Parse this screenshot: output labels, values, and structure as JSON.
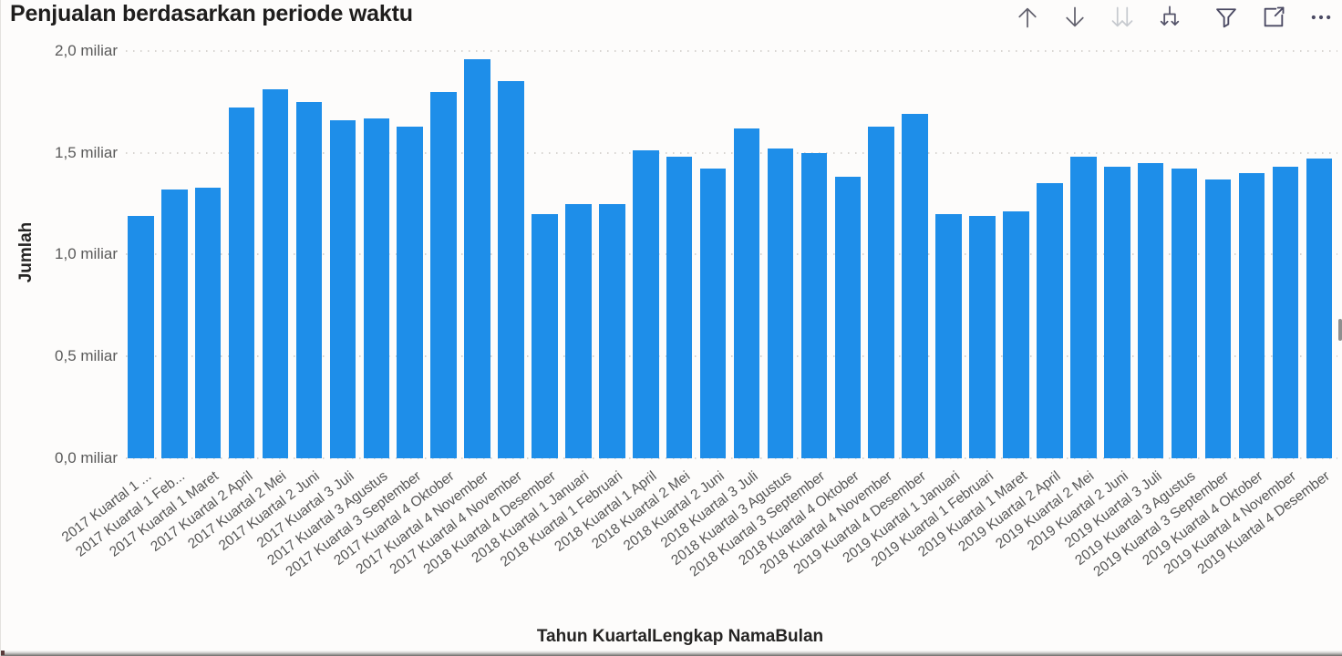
{
  "header": {
    "title": "Penjualan berdasarkan periode waktu",
    "toolbar": {
      "drill_up_label": "drill-up",
      "drill_down_label": "drill-down",
      "next_level_label": "go-to-next-level",
      "expand_next_level_label": "expand-all-down-one-level",
      "filter_label": "filter",
      "focus_mode_label": "focus-mode",
      "more_options_label": "more-options"
    }
  },
  "colors": {
    "bar": "#1E8EE9",
    "gridline": "#D8D5D1",
    "axis_text": "#5A5A5A",
    "title_text": "#1F1E1D",
    "icon_slate": "#63626E",
    "icon_disabled": "#C7CACF",
    "icon_dark": "#4B4A63"
  },
  "chart_data": {
    "type": "bar",
    "title": "Penjualan berdasarkan periode waktu",
    "xlabel": "Tahun KuartalLengkap NamaBulan",
    "ylabel": "Jumlah",
    "unit": "miliar",
    "ylim": [
      0,
      2.0
    ],
    "y_ticks": [
      {
        "value": 0.0,
        "label": "0,0 miliar"
      },
      {
        "value": 0.5,
        "label": "0,5 miliar"
      },
      {
        "value": 1.0,
        "label": "1,0 miliar"
      },
      {
        "value": 1.5,
        "label": "1,5 miliar"
      },
      {
        "value": 2.0,
        "label": "2,0 miliar"
      }
    ],
    "grid": "dotted-horizontal",
    "legend": "none",
    "categories": [
      "2017 Kuartal 1 ...",
      "2017 Kuartal 1 Feb...",
      "2017 Kuartal 1 Maret",
      "2017 Kuartal 2 April",
      "2017 Kuartal 2 Mei",
      "2017 Kuartal 2 Juni",
      "2017 Kuartal 3 Juli",
      "2017 Kuartal 3 Agustus",
      "2017 Kuartal 3 September",
      "2017 Kuartal 4 Oktober",
      "2017 Kuartal 4 November",
      "2017 Kuartal 4 November",
      "2018 Kuartal 4 Desember",
      "2018 Kuartal 1 Januari",
      "2018 Kuartal 1 Februari",
      "2018 Kuartal 1 April",
      "2018 Kuartal 2 Mei",
      "2018 Kuartal 2 Juni",
      "2018 Kuartal 3 Juli",
      "2018 Kuartal 3 Agustus",
      "2018 Kuartal 3 September",
      "2018 Kuartal 4 Oktober",
      "2018 Kuartal 4 November",
      "2019 Kuartal 4 Desember",
      "2019 Kuartal 1 Januari",
      "2019 Kuartal 1 Februari",
      "2019 Kuartal 1 Maret",
      "2019 Kuartal 2 April",
      "2019 Kuartal 2 Mei",
      "2019 Kuartal 2 Juni",
      "2019 Kuartal 3 Juli",
      "2019 Kuartal 3 Agustus",
      "2019 Kuartal 3 September",
      "2019 Kuartal 4 Oktober",
      "2019 Kuartal 4 November",
      "2019 Kuartal 4 Desember"
    ],
    "values": [
      1.19,
      1.32,
      1.33,
      1.72,
      1.81,
      1.75,
      1.66,
      1.67,
      1.63,
      1.8,
      1.96,
      1.85,
      1.2,
      1.25,
      1.25,
      1.51,
      1.48,
      1.42,
      1.62,
      1.52,
      1.5,
      1.38,
      1.63,
      1.69,
      1.2,
      1.19,
      1.21,
      1.35,
      1.48,
      1.43,
      1.45,
      1.42,
      1.37,
      1.4,
      1.43,
      1.47
    ]
  }
}
